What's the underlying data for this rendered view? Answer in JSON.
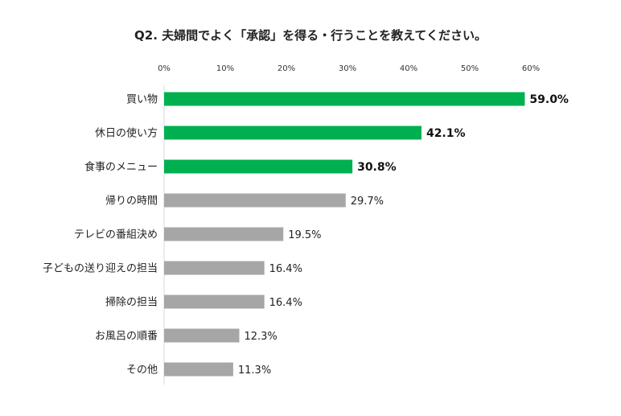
{
  "chart_data": {
    "type": "bar",
    "orientation": "horizontal",
    "title": "Q2. 夫婦間でよく「承認」を得る・行うことを教えてください。",
    "xlim": [
      0,
      60
    ],
    "ticks": [
      {
        "value": 0,
        "label": "0%"
      },
      {
        "value": 10,
        "label": "10%"
      },
      {
        "value": 20,
        "label": "20%"
      },
      {
        "value": 30,
        "label": "30%"
      },
      {
        "value": 40,
        "label": "40%"
      },
      {
        "value": 50,
        "label": "50%"
      },
      {
        "value": 60,
        "label": "60%"
      }
    ],
    "tick_position": "top",
    "grid": false,
    "categories": [
      "買い物",
      "休日の使い方",
      "食事のメニュー",
      "帰りの時間",
      "テレビの番組決め",
      "子どもの送り迎えの担当",
      "掃除の担当",
      "お風呂の順番",
      "その他"
    ],
    "values": [
      59.0,
      42.1,
      30.8,
      29.7,
      19.5,
      16.4,
      16.4,
      12.3,
      11.3
    ],
    "labels": [
      "59.0%",
      "42.1%",
      "30.8%",
      "29.7%",
      "19.5%",
      "16.4%",
      "16.4%",
      "12.3%",
      "11.3%"
    ],
    "highlight_count": 3,
    "colors": {
      "highlight": "#00b050",
      "default": "#a6a6a6",
      "axis": "#d9d9d9"
    }
  }
}
